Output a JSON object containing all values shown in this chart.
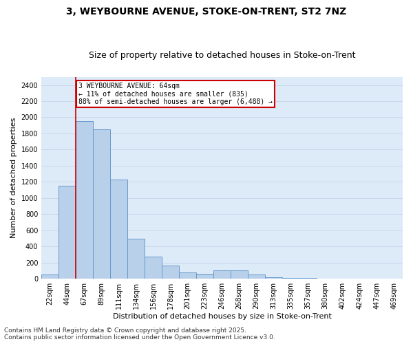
{
  "title_line1": "3, WEYBOURNE AVENUE, STOKE-ON-TRENT, ST2 7NZ",
  "title_line2": "Size of property relative to detached houses in Stoke-on-Trent",
  "xlabel": "Distribution of detached houses by size in Stoke-on-Trent",
  "ylabel": "Number of detached properties",
  "categories": [
    "22sqm",
    "44sqm",
    "67sqm",
    "89sqm",
    "111sqm",
    "134sqm",
    "156sqm",
    "178sqm",
    "201sqm",
    "223sqm",
    "246sqm",
    "268sqm",
    "290sqm",
    "313sqm",
    "335sqm",
    "357sqm",
    "380sqm",
    "402sqm",
    "424sqm",
    "447sqm",
    "469sqm"
  ],
  "values": [
    50,
    1150,
    1950,
    1850,
    1225,
    500,
    275,
    160,
    80,
    60,
    100,
    100,
    50,
    15,
    12,
    8,
    6,
    5,
    4,
    3,
    3
  ],
  "bar_color": "#b8d0ea",
  "bar_edge_color": "#6699cc",
  "annotation_text": "3 WEYBOURNE AVENUE: 64sqm\n← 11% of detached houses are smaller (835)\n88% of semi-detached houses are larger (6,488) →",
  "annotation_box_color": "#ffffff",
  "annotation_box_edge_color": "#cc0000",
  "vline_color": "#cc0000",
  "vline_x": 1.5,
  "ylim": [
    0,
    2500
  ],
  "yticks": [
    0,
    200,
    400,
    600,
    800,
    1000,
    1200,
    1400,
    1600,
    1800,
    2000,
    2200,
    2400
  ],
  "grid_color": "#c8d8ec",
  "background_color": "#ddeaf8",
  "footer_line1": "Contains HM Land Registry data © Crown copyright and database right 2025.",
  "footer_line2": "Contains public sector information licensed under the Open Government Licence v3.0.",
  "title_fontsize": 10,
  "subtitle_fontsize": 9,
  "axis_label_fontsize": 8,
  "tick_fontsize": 7,
  "annotation_fontsize": 7,
  "footer_fontsize": 6.5
}
